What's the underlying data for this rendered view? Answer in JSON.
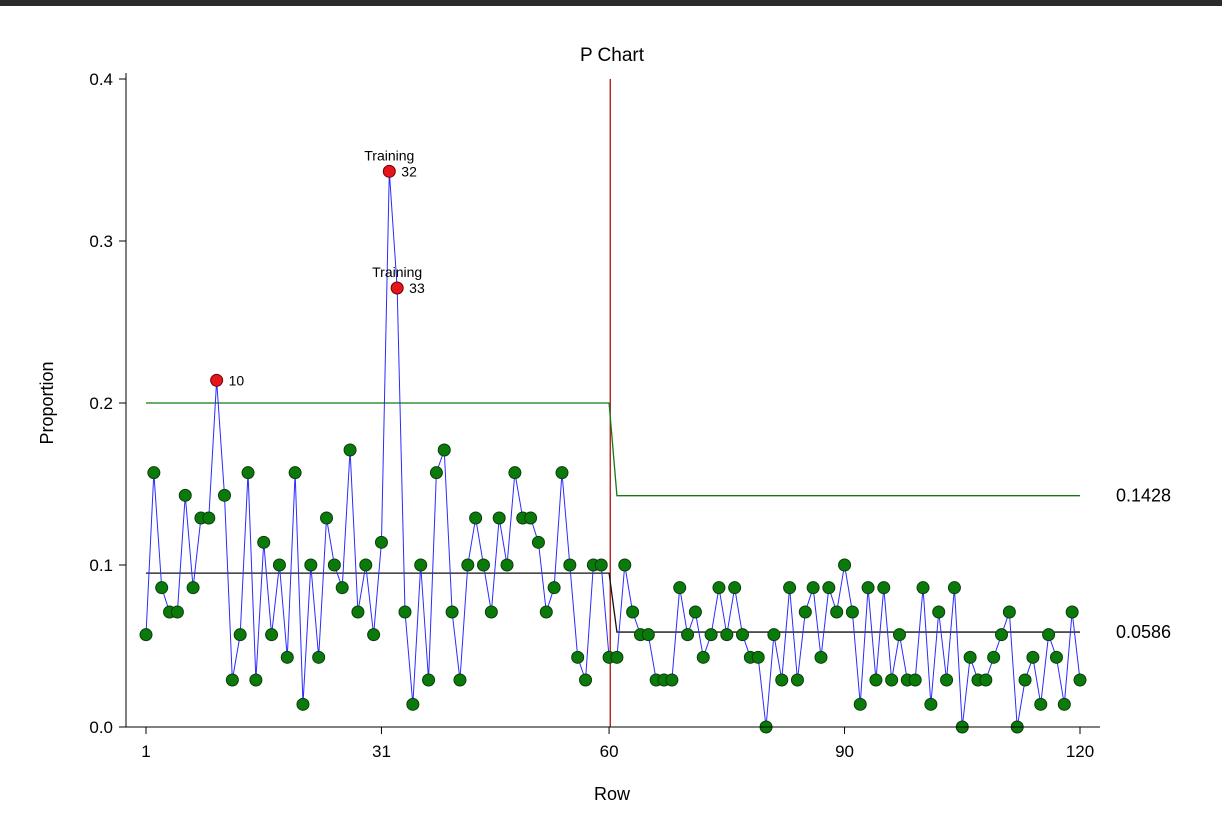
{
  "chart_data": {
    "type": "line",
    "title": "P Chart",
    "xlabel": "Row",
    "ylabel": "Proportion",
    "xlim": [
      1,
      120
    ],
    "ylim": [
      0,
      0.4
    ],
    "x_ticks": [
      1,
      31,
      60,
      90,
      120
    ],
    "x_tick_labels": [
      "1",
      "31",
      "60",
      "90",
      "120"
    ],
    "y_ticks": [
      0,
      0.1,
      0.2,
      0.3,
      0.4
    ],
    "y_tick_labels": [
      "0.0",
      "0.1",
      "0.2",
      "0.3",
      "0.4"
    ],
    "grid": false,
    "phase_split_after_row": 60,
    "phases": [
      {
        "from": 1,
        "to": 60,
        "center_line": 0.095,
        "ucl": 0.2
      },
      {
        "from": 61,
        "to": 120,
        "center_line": 0.0586,
        "ucl": 0.1428
      }
    ],
    "right_labels": [
      "0.1428",
      "0.0586"
    ],
    "x": [
      1,
      2,
      3,
      4,
      5,
      6,
      7,
      8,
      9,
      10,
      11,
      12,
      13,
      14,
      15,
      16,
      17,
      18,
      19,
      20,
      21,
      22,
      23,
      24,
      25,
      26,
      27,
      28,
      29,
      30,
      31,
      32,
      33,
      34,
      35,
      36,
      37,
      38,
      39,
      40,
      41,
      42,
      43,
      44,
      45,
      46,
      47,
      48,
      49,
      50,
      51,
      52,
      53,
      54,
      55,
      56,
      57,
      58,
      59,
      60,
      61,
      62,
      63,
      64,
      65,
      66,
      67,
      68,
      69,
      70,
      71,
      72,
      73,
      74,
      75,
      76,
      77,
      78,
      79,
      80,
      81,
      82,
      83,
      84,
      85,
      86,
      87,
      88,
      89,
      90,
      91,
      92,
      93,
      94,
      95,
      96,
      97,
      98,
      99,
      100,
      101,
      102,
      103,
      104,
      105,
      106,
      107,
      108,
      109,
      110,
      111,
      112,
      113,
      114,
      115,
      116,
      117,
      118,
      119,
      120
    ],
    "values": [
      0.057,
      0.157,
      0.086,
      0.071,
      0.071,
      0.143,
      0.086,
      0.129,
      0.129,
      0.214,
      0.143,
      0.029,
      0.057,
      0.157,
      0.029,
      0.114,
      0.057,
      0.1,
      0.043,
      0.157,
      0.014,
      0.1,
      0.043,
      0.129,
      0.1,
      0.086,
      0.171,
      0.071,
      0.1,
      0.057,
      0.114,
      0.343,
      0.271,
      0.071,
      0.014,
      0.1,
      0.029,
      0.157,
      0.171,
      0.071,
      0.029,
      0.1,
      0.129,
      0.1,
      0.071,
      0.129,
      0.1,
      0.157,
      0.129,
      0.129,
      0.114,
      0.071,
      0.086,
      0.157,
      0.1,
      0.043,
      0.029,
      0.1,
      0.1,
      0.043,
      0.043,
      0.1,
      0.071,
      0.057,
      0.057,
      0.029,
      0.029,
      0.029,
      0.086,
      0.057,
      0.071,
      0.043,
      0.057,
      0.086,
      0.057,
      0.086,
      0.057,
      0.043,
      0.043,
      0.0,
      0.057,
      0.029,
      0.086,
      0.029,
      0.071,
      0.086,
      0.043,
      0.086,
      0.071,
      0.1,
      0.071,
      0.014,
      0.086,
      0.029,
      0.086,
      0.029,
      0.057,
      0.029,
      0.029,
      0.086,
      0.014,
      0.071,
      0.029,
      0.086,
      0.0,
      0.043,
      0.029,
      0.029,
      0.043,
      0.057,
      0.071,
      0.0,
      0.029,
      0.043,
      0.014,
      0.057,
      0.043,
      0.014,
      0.071,
      0.029
    ],
    "flagged_points": [
      {
        "row": 10,
        "label": "10",
        "note": ""
      },
      {
        "row": 32,
        "label": "32",
        "note": "Training"
      },
      {
        "row": 33,
        "label": "33",
        "note": "Training"
      }
    ],
    "colors": {
      "series_line": "#2b2bff",
      "point_fill": "#0a7a0a",
      "point_stroke": "#0a3d0a",
      "flag_fill": "#e8141c",
      "flag_stroke": "#6b0000",
      "ucl_line": "#117a11",
      "center_line": "#111111",
      "phase_divider": "#b01010",
      "axis": "#000000"
    }
  }
}
